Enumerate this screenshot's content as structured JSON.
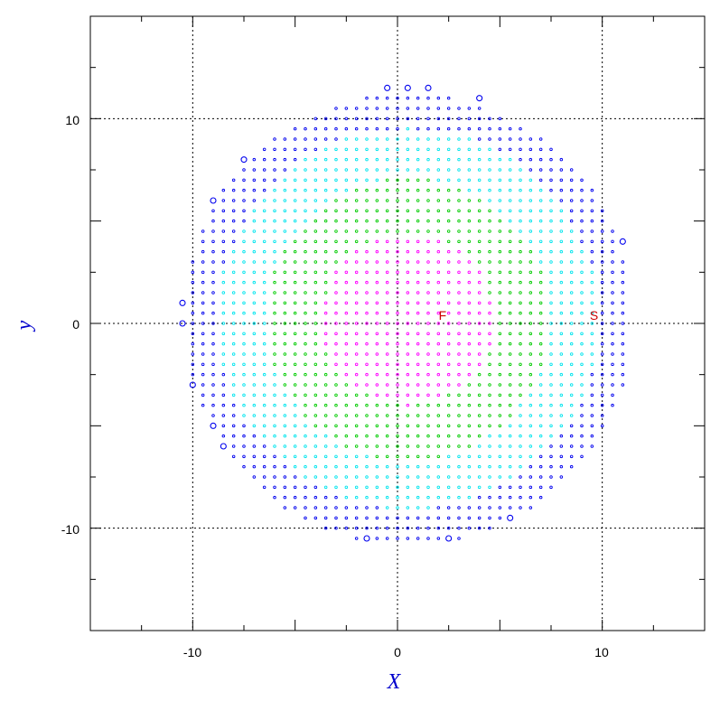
{
  "chart_data": {
    "type": "scatter",
    "title": "",
    "xlabel": "X",
    "ylabel": "y",
    "xlim": [
      -15,
      15
    ],
    "ylim": [
      -15,
      15
    ],
    "xticks": [
      "-10",
      "0",
      "10"
    ],
    "yticks": [
      "10",
      "0",
      "-10"
    ],
    "xtick_values": [
      -10,
      0,
      10
    ],
    "ytick_values": [
      10,
      0,
      -10
    ],
    "grid": "dotted lines at -10, 0, 10",
    "annotations": [
      {
        "text": "F",
        "x": 2.2,
        "y": 0.4
      },
      {
        "text": "S",
        "x": 9.6,
        "y": 0.4
      }
    ],
    "grid_spacing": 0.5,
    "disk_center": [
      0.5,
      0.2
    ],
    "disk_radius": 11.0,
    "bands": [
      {
        "name": "",
        "color": "#ff00ff",
        "rmax": 4.2
      },
      {
        "name": "",
        "color": "#00cc00",
        "rmax": 6.9
      },
      {
        "name": "",
        "color": "#00e5ee",
        "rmax": 9.3
      },
      {
        "name": "",
        "color": "#0000ee",
        "rmax": 11.0
      }
    ],
    "highlighted_points": [
      {
        "x": -0.5,
        "y": 11.5
      },
      {
        "x": 0.5,
        "y": 11.5
      },
      {
        "x": 1.5,
        "y": 11.5
      },
      {
        "x": 4.0,
        "y": 11.0
      },
      {
        "x": -10.5,
        "y": 1.0
      },
      {
        "x": -10.5,
        "y": 0.0
      },
      {
        "x": -9.0,
        "y": -5.0
      },
      {
        "x": -8.5,
        "y": -6.0
      },
      {
        "x": -9.0,
        "y": 6.0
      },
      {
        "x": -7.5,
        "y": 8.0
      },
      {
        "x": 11.0,
        "y": 4.0
      },
      {
        "x": 5.5,
        "y": -9.5
      },
      {
        "x": -1.5,
        "y": -10.5
      },
      {
        "x": 2.5,
        "y": -10.5
      },
      {
        "x": -10.0,
        "y": -3.0
      }
    ]
  }
}
